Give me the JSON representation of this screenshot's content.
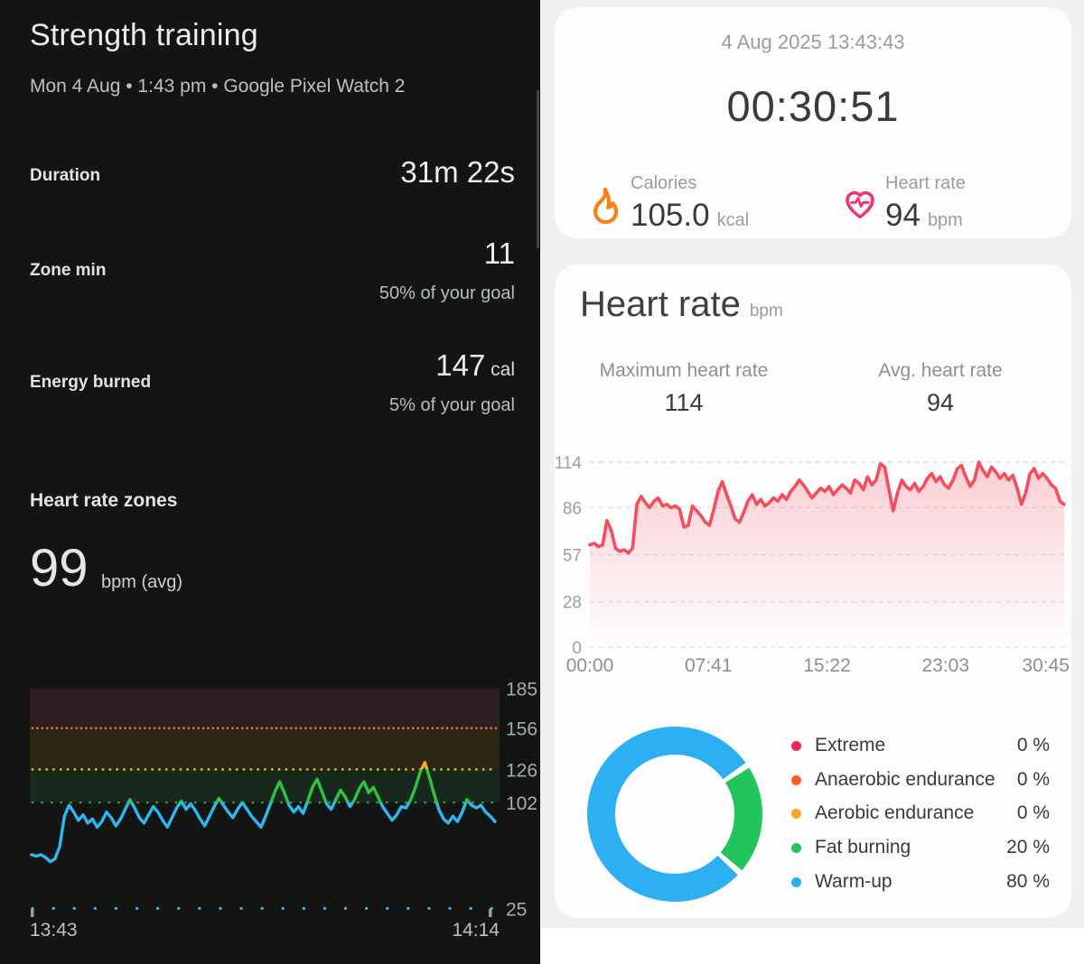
{
  "left_panel": {
    "title": "Strength training",
    "subtitle": "Mon 4 Aug • 1:43 pm • Google Pixel Watch 2",
    "stats": [
      {
        "label": "Duration",
        "value": "31m 22s",
        "unit": "",
        "goal": ""
      },
      {
        "label": "Zone min",
        "value": "11",
        "unit": "",
        "goal": "50% of your goal"
      },
      {
        "label": "Energy burned",
        "value": "147",
        "unit": " cal",
        "goal": "5% of your goal"
      }
    ],
    "section_title": "Heart rate zones",
    "avg_value": "99",
    "avg_unit": "bpm (avg)"
  },
  "right_panel": {
    "summary_card": {
      "datetime": "4 Aug 2025 13:43:43",
      "timer": "00:30:51",
      "calories": {
        "label": "Calories",
        "value": "105.0",
        "unit": "kcal",
        "icon": "flame-icon",
        "icon_color": "#f98016"
      },
      "heart_rate": {
        "label": "Heart rate",
        "value": "94",
        "unit": "bpm",
        "icon": "heart-pulse-icon",
        "icon_color": "#f2326b"
      }
    },
    "hr_card": {
      "title": "Heart rate",
      "title_unit": "bpm",
      "max": {
        "label": "Maximum heart rate",
        "value": "114"
      },
      "avg": {
        "label": "Avg. heart rate",
        "value": "94"
      }
    }
  },
  "chart_data": [
    {
      "id": "hr-zones-chart",
      "type": "line",
      "title": "Heart rate zones",
      "x_axis_labels": [
        "13:43",
        "14:14"
      ],
      "y_ticks": [
        185,
        156,
        126,
        102,
        25
      ],
      "zone_bands": [
        {
          "name": "peak",
          "from": 156,
          "to": 185,
          "band_color": "#2c1e21"
        },
        {
          "name": "cardio",
          "from": 126,
          "to": 156,
          "band_color": "#2c2713"
        },
        {
          "name": "fat-burn",
          "from": 102,
          "to": 126,
          "band_color": "#17281c"
        }
      ],
      "dot_lines": [
        {
          "value": 156,
          "color": "#f2696b",
          "gap": 5.3,
          "width": 2.6
        },
        {
          "value": 126,
          "color": "#efb020",
          "gap": 7.7,
          "width": 2.8
        },
        {
          "value": 102,
          "color": "#3aa846",
          "gap": 10.5,
          "width": 2.6
        },
        {
          "value": 25,
          "color": "#33bdf2",
          "gap": 23,
          "width": 3.2
        }
      ],
      "segment_colors": {
        "below_102": "#2eb8f2",
        "from_102_to_126": "#2ec344",
        "above_126": "#f2b01e"
      },
      "axis_color": "#a6abad",
      "series_bpm": [
        64,
        63,
        64,
        62,
        59,
        61,
        70,
        92,
        100,
        95,
        89,
        93,
        87,
        90,
        84,
        88,
        95,
        91,
        85,
        90,
        97,
        104,
        98,
        91,
        87,
        93,
        99,
        95,
        89,
        84,
        91,
        98,
        103,
        97,
        101,
        96,
        90,
        85,
        92,
        99,
        105,
        100,
        95,
        91,
        97,
        102,
        97,
        92,
        88,
        84,
        92,
        101,
        110,
        117,
        109,
        100,
        95,
        99,
        94,
        103,
        113,
        119,
        110,
        101,
        97,
        104,
        111,
        106,
        99,
        104,
        112,
        117,
        109,
        113,
        106,
        99,
        94,
        89,
        93,
        99,
        98,
        104,
        113,
        124,
        131,
        120,
        108,
        97,
        90,
        87,
        92,
        88,
        95,
        104,
        100,
        98,
        100,
        95,
        92,
        88
      ]
    },
    {
      "id": "hr-line-chart",
      "type": "area",
      "title": "Heart rate",
      "unit": "bpm",
      "y_ticks": [
        114,
        86,
        57,
        28,
        0
      ],
      "x_ticks": [
        "00:00",
        "07:41",
        "15:22",
        "23:03",
        "30:45"
      ],
      "y_max": 114,
      "line_color": "#f44d5e",
      "fill_color": "#f44d5e",
      "grid_color": "#e1e1e3",
      "axis_color": "#9e9e9e",
      "series_bpm": [
        63,
        64,
        62,
        63,
        78,
        72,
        61,
        59,
        60,
        58,
        61,
        88,
        93,
        89,
        86,
        90,
        92,
        87,
        88,
        86,
        87,
        85,
        74,
        75,
        87,
        84,
        81,
        77,
        75,
        85,
        96,
        102,
        94,
        87,
        79,
        77,
        83,
        90,
        94,
        88,
        91,
        87,
        89,
        92,
        90,
        94,
        91,
        96,
        99,
        103,
        100,
        96,
        92,
        95,
        98,
        96,
        99,
        94,
        97,
        100,
        98,
        95,
        103,
        101,
        97,
        105,
        100,
        103,
        113,
        111,
        97,
        84,
        95,
        103,
        99,
        97,
        101,
        96,
        99,
        104,
        107,
        102,
        105,
        100,
        98,
        103,
        110,
        112,
        105,
        99,
        103,
        114,
        109,
        105,
        111,
        108,
        104,
        107,
        103,
        106,
        98,
        88,
        95,
        107,
        110,
        104,
        107,
        104,
        100,
        98,
        90,
        88
      ]
    },
    {
      "id": "hr-zones-donut",
      "type": "donut",
      "slices": [
        {
          "label": "Extreme",
          "value": 0,
          "display": "0 %",
          "color": "#f0245a"
        },
        {
          "label": "Anaerobic endurance",
          "value": 0,
          "display": "0 %",
          "color": "#fb5b27"
        },
        {
          "label": "Aerobic endurance",
          "value": 0,
          "display": "0 %",
          "color": "#fca426"
        },
        {
          "label": "Fat burning",
          "value": 20,
          "display": "20 %",
          "color": "#22c55b"
        },
        {
          "label": "Warm-up",
          "value": 80,
          "display": "80 %",
          "color": "#2cb0f3"
        }
      ]
    }
  ]
}
